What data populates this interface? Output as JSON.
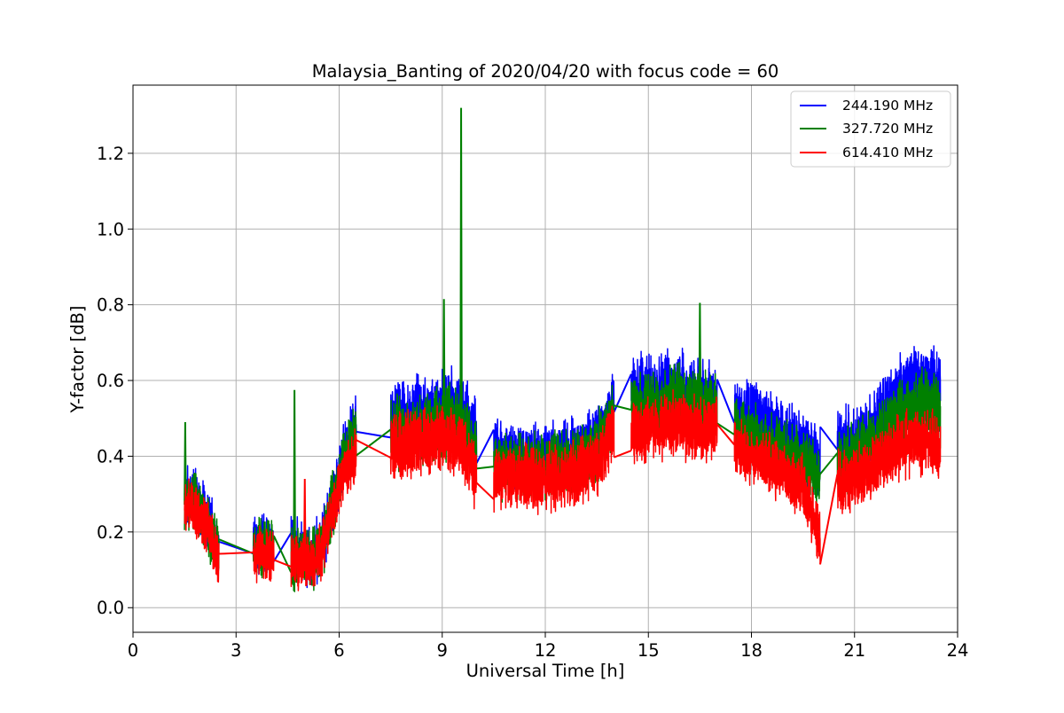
{
  "chart_data": {
    "type": "line",
    "title": "Malaysia_Banting of 2020/04/20 with focus code = 60",
    "xlabel": "Universal Time [h]",
    "ylabel": "Y-factor [dB]",
    "xlim": [
      0,
      24
    ],
    "ylim": [
      -0.065,
      1.38
    ],
    "xticks": [
      0,
      3,
      6,
      9,
      12,
      15,
      18,
      21,
      24
    ],
    "xtick_labels": [
      "0",
      "3",
      "6",
      "9",
      "12",
      "15",
      "18",
      "21",
      "24"
    ],
    "yticks": [
      0.0,
      0.2,
      0.4,
      0.6,
      0.8,
      1.0,
      1.2
    ],
    "ytick_labels": [
      "0.0",
      "0.2",
      "0.4",
      "0.6",
      "0.8",
      "1.0",
      "1.2"
    ],
    "grid": true,
    "legend_position": "top-right",
    "series": [
      {
        "name": "244.190 MHz",
        "color": "#0000ff",
        "segments": [
          {
            "x": [
              1.5,
              1.7,
              1.9,
              2.1,
              2.3,
              2.5
            ],
            "y": [
              0.28,
              0.3,
              0.27,
              0.24,
              0.2,
              0.15
            ],
            "noise": 0.09
          },
          {
            "x": [
              3.5,
              3.7,
              3.9,
              4.1
            ],
            "y": [
              0.16,
              0.17,
              0.17,
              0.16
            ],
            "noise": 0.09
          },
          {
            "x": [
              4.6,
              4.9,
              5.2,
              5.5,
              5.8,
              6.1,
              6.5
            ],
            "y": [
              0.15,
              0.14,
              0.14,
              0.17,
              0.28,
              0.4,
              0.48
            ],
            "noise": 0.1
          },
          {
            "x": [
              7.5,
              8.0,
              8.5,
              9.0,
              9.5,
              10.0
            ],
            "y": [
              0.5,
              0.5,
              0.51,
              0.53,
              0.53,
              0.45
            ],
            "noise": 0.12
          },
          {
            "x": [
              10.5,
              11.0,
              11.5,
              12.0,
              12.5,
              13.0,
              13.5,
              14.0
            ],
            "y": [
              0.42,
              0.4,
              0.4,
              0.4,
              0.41,
              0.42,
              0.45,
              0.54
            ],
            "noise": 0.1
          },
          {
            "x": [
              14.5,
              15.0,
              15.5,
              16.0,
              16.5,
              17.0
            ],
            "y": [
              0.56,
              0.56,
              0.57,
              0.57,
              0.56,
              0.55
            ],
            "noise": 0.12
          },
          {
            "x": [
              17.5,
              18.0,
              18.5,
              19.0,
              19.5,
              20.0
            ],
            "y": [
              0.52,
              0.5,
              0.48,
              0.45,
              0.42,
              0.38
            ],
            "noise": 0.11
          },
          {
            "x": [
              20.5,
              21.0,
              21.5,
              22.0,
              22.5,
              23.0,
              23.5
            ],
            "y": [
              0.42,
              0.43,
              0.46,
              0.52,
              0.58,
              0.59,
              0.57
            ],
            "noise": 0.12
          }
        ]
      },
      {
        "name": "327.720 MHz",
        "color": "#008000",
        "segments": [
          {
            "x": [
              1.5,
              1.7,
              1.9,
              2.1,
              2.3,
              2.5
            ],
            "y": [
              0.27,
              0.29,
              0.26,
              0.23,
              0.19,
              0.15
            ],
            "noise": 0.09
          },
          {
            "x": [
              3.5,
              3.7,
              3.9,
              4.1
            ],
            "y": [
              0.15,
              0.16,
              0.16,
              0.15
            ],
            "noise": 0.09
          },
          {
            "x": [
              4.6,
              4.9,
              5.2,
              5.5,
              5.8,
              6.1,
              6.5
            ],
            "y": [
              0.13,
              0.13,
              0.13,
              0.16,
              0.27,
              0.38,
              0.45
            ],
            "noise": 0.1
          },
          {
            "x": [
              7.5,
              8.0,
              8.5,
              9.0,
              9.5,
              10.0
            ],
            "y": [
              0.46,
              0.46,
              0.47,
              0.49,
              0.49,
              0.4
            ],
            "noise": 0.11
          },
          {
            "x": [
              10.5,
              11.0,
              11.5,
              12.0,
              12.5,
              13.0,
              13.5,
              14.0
            ],
            "y": [
              0.38,
              0.37,
              0.37,
              0.37,
              0.38,
              0.39,
              0.42,
              0.51
            ],
            "noise": 0.1
          },
          {
            "x": [
              14.5,
              15.0,
              15.5,
              16.0,
              16.5,
              17.0
            ],
            "y": [
              0.52,
              0.53,
              0.54,
              0.55,
              0.54,
              0.52
            ],
            "noise": 0.11
          },
          {
            "x": [
              17.5,
              18.0,
              18.5,
              19.0,
              19.5,
              20.0
            ],
            "y": [
              0.47,
              0.45,
              0.43,
              0.41,
              0.38,
              0.35
            ],
            "noise": 0.1
          },
          {
            "x": [
              20.5,
              21.0,
              21.5,
              22.0,
              22.5,
              23.0,
              23.5
            ],
            "y": [
              0.38,
              0.39,
              0.42,
              0.47,
              0.52,
              0.53,
              0.51
            ],
            "noise": 0.11
          }
        ],
        "spikes": [
          {
            "x": 1.52,
            "y": 0.49
          },
          {
            "x": 4.7,
            "y": 0.575
          },
          {
            "x": 9.05,
            "y": 0.815
          },
          {
            "x": 9.55,
            "y": 1.32
          },
          {
            "x": 16.5,
            "y": 0.805
          }
        ]
      },
      {
        "name": "614.410 MHz",
        "color": "#ff0000",
        "segments": [
          {
            "x": [
              1.5,
              1.7,
              1.9,
              2.1,
              2.3,
              2.5
            ],
            "y": [
              0.26,
              0.27,
              0.25,
              0.22,
              0.18,
              0.13
            ],
            "noise": 0.08
          },
          {
            "x": [
              3.5,
              3.7,
              3.9,
              4.1
            ],
            "y": [
              0.13,
              0.14,
              0.14,
              0.13
            ],
            "noise": 0.08
          },
          {
            "x": [
              4.6,
              4.9,
              5.2,
              5.5,
              5.8,
              6.1,
              6.5
            ],
            "y": [
              0.12,
              0.12,
              0.12,
              0.15,
              0.25,
              0.35,
              0.4
            ],
            "noise": 0.09
          },
          {
            "x": [
              7.5,
              8.0,
              8.5,
              9.0,
              9.5,
              10.0
            ],
            "y": [
              0.42,
              0.43,
              0.44,
              0.45,
              0.44,
              0.34
            ],
            "noise": 0.1
          },
          {
            "x": [
              10.5,
              11.0,
              11.5,
              12.0,
              12.5,
              13.0,
              13.5,
              14.0
            ],
            "y": [
              0.34,
              0.34,
              0.34,
              0.34,
              0.35,
              0.36,
              0.38,
              0.47
            ],
            "noise": 0.1
          },
          {
            "x": [
              14.5,
              15.0,
              15.5,
              16.0,
              16.5,
              17.0
            ],
            "y": [
              0.46,
              0.47,
              0.48,
              0.48,
              0.47,
              0.47
            ],
            "noise": 0.1
          },
          {
            "x": [
              17.5,
              18.0,
              18.5,
              19.0,
              19.5,
              20.0
            ],
            "y": [
              0.42,
              0.4,
              0.38,
              0.35,
              0.32,
              0.18
            ],
            "noise": 0.09
          },
          {
            "x": [
              20.5,
              21.0,
              21.5,
              22.0,
              22.5,
              23.0,
              23.5
            ],
            "y": [
              0.32,
              0.34,
              0.37,
              0.41,
              0.43,
              0.44,
              0.42
            ],
            "noise": 0.1
          }
        ],
        "spikes": [
          {
            "x": 5.0,
            "y": 0.34
          }
        ]
      }
    ]
  }
}
